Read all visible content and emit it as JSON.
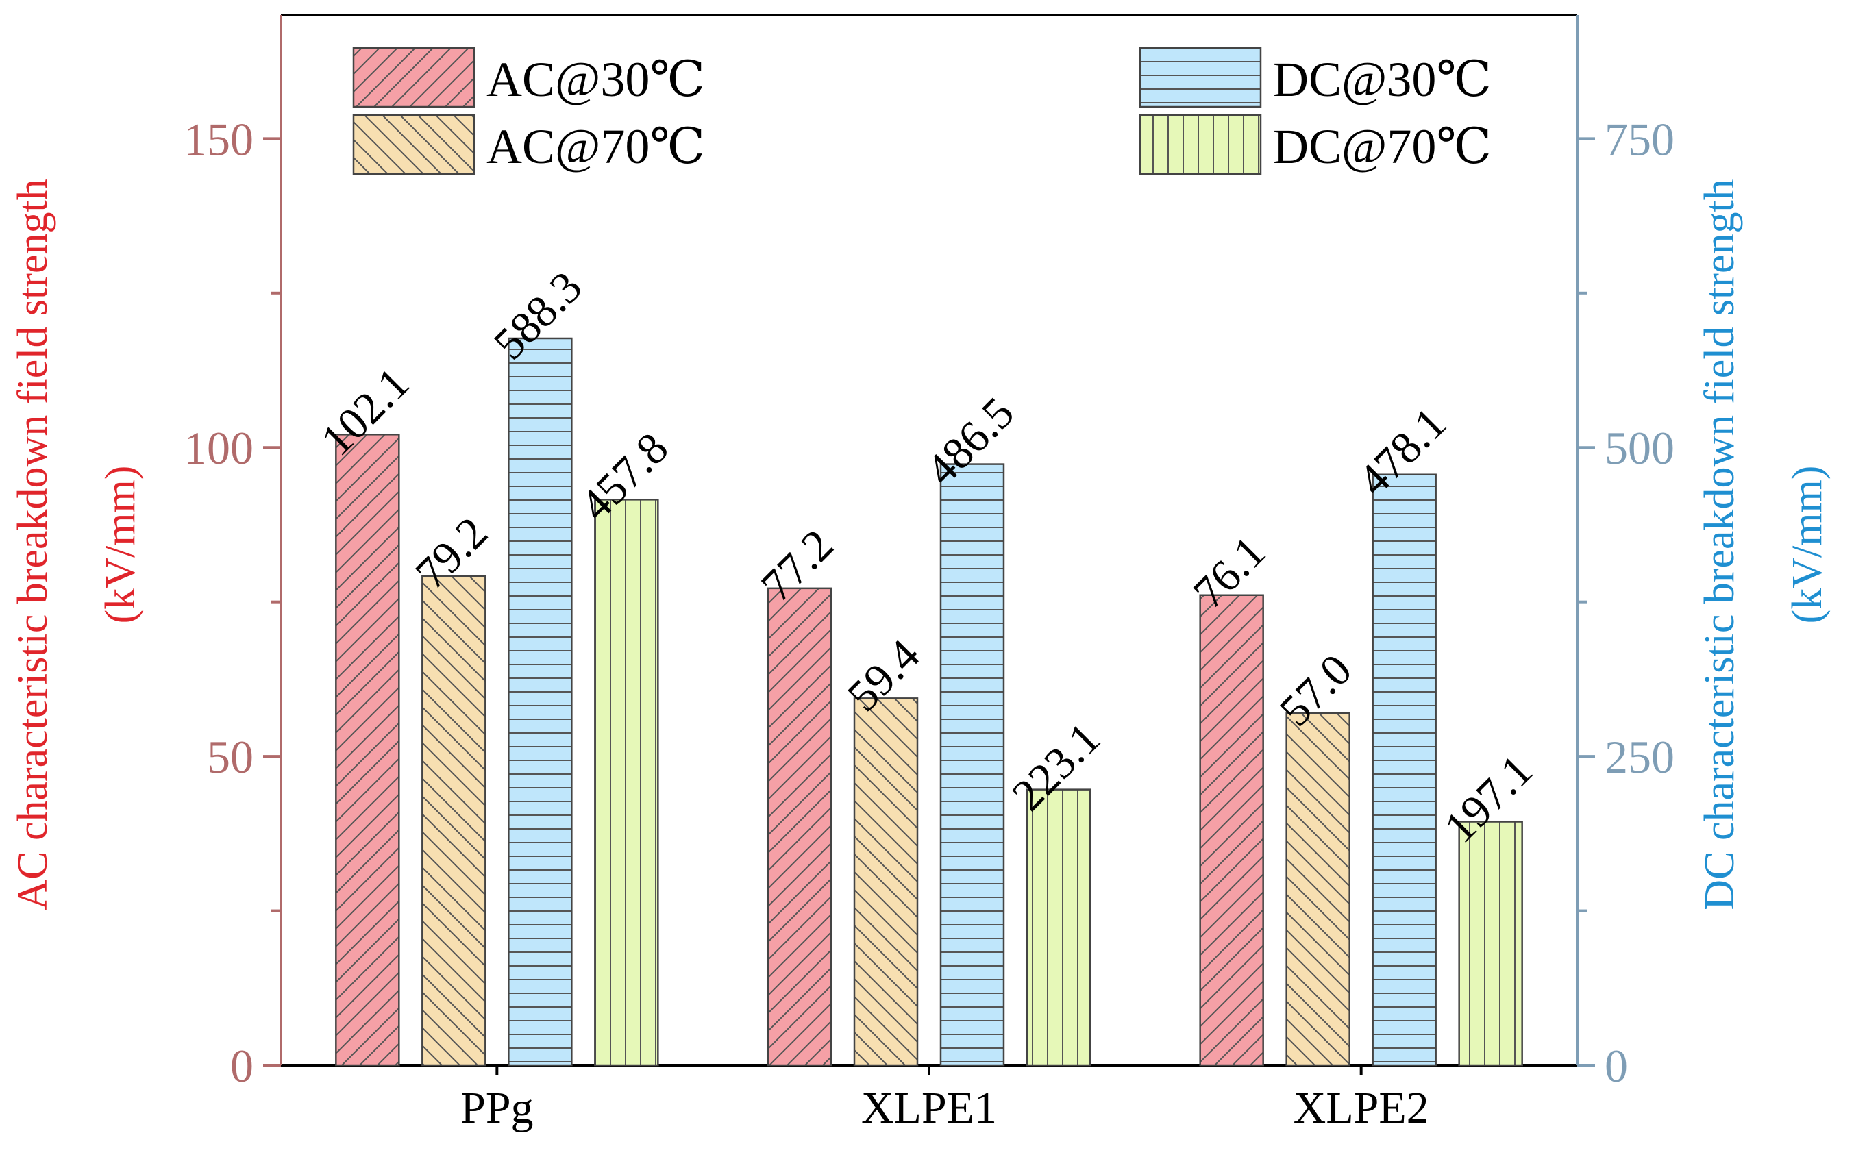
{
  "chart_data": {
    "type": "bar",
    "categories": [
      "PPg",
      "XLPE1",
      "XLPE2"
    ],
    "series": [
      {
        "name": "AC@30℃",
        "axis": "left",
        "values": [
          102.1,
          77.2,
          76.1
        ],
        "labels": [
          "102.1",
          "77.2",
          "76.1"
        ],
        "color": "#f5a0a6",
        "pattern": "diagonal-up"
      },
      {
        "name": "AC@70℃",
        "axis": "left",
        "values": [
          79.2,
          59.4,
          57.0
        ],
        "labels": [
          "79.2",
          "59.4",
          "57.0"
        ],
        "color": "#f7dfb1",
        "pattern": "diagonal-down"
      },
      {
        "name": "DC@30℃",
        "axis": "right",
        "values": [
          588.3,
          486.5,
          478.1
        ],
        "labels": [
          "588.3",
          "486.5",
          "478.1"
        ],
        "color": "#bfe6fb",
        "pattern": "horizontal"
      },
      {
        "name": "DC@70℃",
        "axis": "right",
        "values": [
          457.8,
          223.1,
          197.1
        ],
        "labels": [
          "457.8",
          "223.1",
          "197.1"
        ],
        "color": "#e6f8b8",
        "pattern": "vertical"
      }
    ],
    "left_axis": {
      "label_line1": "AC characteristic breakdown field strength",
      "label_line2": "(kV/mm)",
      "ylim": [
        0,
        170
      ],
      "ticks": [
        0,
        50,
        100,
        150
      ],
      "tick_labels": [
        "0",
        "50",
        "100",
        "150"
      ],
      "minor_ticks": [
        25,
        75,
        125
      ],
      "tick_color": "#b06a6a",
      "label_color": "#e0252b"
    },
    "right_axis": {
      "label_line1": "DC characteristic breakdown field strength",
      "label_line2": "(kV/mm)",
      "ylim": [
        0,
        850
      ],
      "ticks": [
        0,
        250,
        500,
        750
      ],
      "tick_labels": [
        "0",
        "250",
        "500",
        "750"
      ],
      "minor_ticks": [
        125,
        375,
        625
      ],
      "tick_color": "#7e9db5",
      "label_color": "#1f8fd1"
    },
    "legend": {
      "position": "top",
      "layout": "two columns"
    },
    "grid": false
  }
}
